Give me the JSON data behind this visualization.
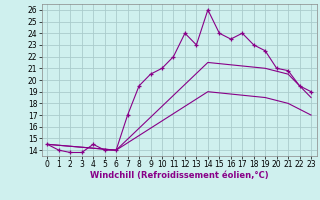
{
  "xlabel": "Windchill (Refroidissement éolien,°C)",
  "bg_color": "#cff0ee",
  "grid_color": "#aacccc",
  "line_color": "#880088",
  "xlim": [
    -0.5,
    23.5
  ],
  "ylim": [
    13.5,
    26.5
  ],
  "xticks": [
    0,
    1,
    2,
    3,
    4,
    5,
    6,
    7,
    8,
    9,
    10,
    11,
    12,
    13,
    14,
    15,
    16,
    17,
    18,
    19,
    20,
    21,
    22,
    23
  ],
  "yticks": [
    14,
    15,
    16,
    17,
    18,
    19,
    20,
    21,
    22,
    23,
    24,
    25,
    26
  ],
  "main_x": [
    0,
    1,
    2,
    3,
    4,
    5,
    6,
    7,
    8,
    9,
    10,
    11,
    12,
    13,
    14,
    15,
    16,
    17,
    18,
    19,
    20,
    21,
    22,
    23
  ],
  "main_y": [
    14.5,
    14.0,
    13.8,
    13.8,
    14.5,
    14.0,
    14.0,
    17.0,
    19.5,
    20.5,
    21.0,
    22.0,
    24.0,
    23.0,
    26.0,
    24.0,
    23.5,
    24.0,
    23.0,
    22.5,
    21.0,
    20.8,
    19.5,
    19.0
  ],
  "line2_x": [
    0,
    6,
    14,
    19,
    21,
    22,
    23
  ],
  "line2_y": [
    14.5,
    14.0,
    21.5,
    21.0,
    20.5,
    19.5,
    18.5
  ],
  "line3_x": [
    0,
    6,
    14,
    19,
    21,
    22,
    23
  ],
  "line3_y": [
    14.5,
    14.0,
    19.0,
    18.5,
    18.0,
    17.5,
    17.0
  ],
  "tick_fontsize": 5.5,
  "xlabel_fontsize": 6.0
}
